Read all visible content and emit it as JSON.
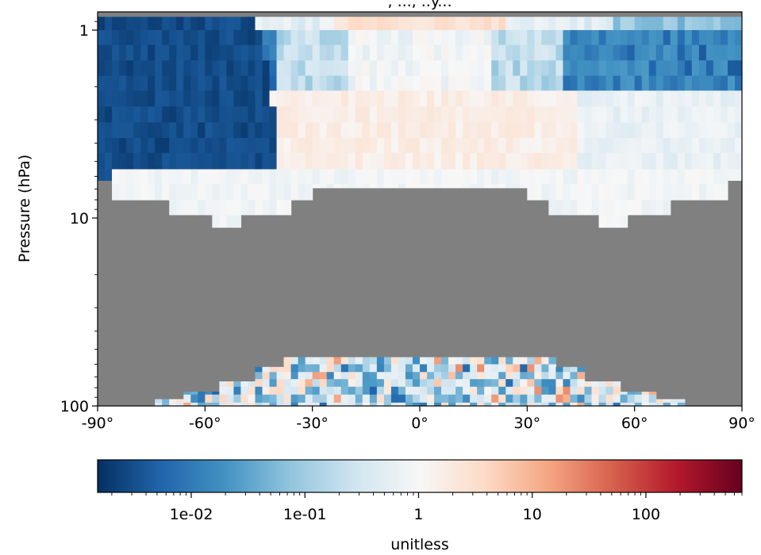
{
  "chart_data": {
    "type": "heatmap",
    "title_partial": ", ..., ..y...",
    "ylabel": "Pressure (hPa)",
    "x_ticks": [
      {
        "value": -90,
        "label": "-90°"
      },
      {
        "value": -60,
        "label": "-60°"
      },
      {
        "value": -30,
        "label": "-30°"
      },
      {
        "value": 0,
        "label": "0°"
      },
      {
        "value": 30,
        "label": "30°"
      },
      {
        "value": 60,
        "label": "60°"
      },
      {
        "value": 90,
        "label": "90°"
      }
    ],
    "xlim": [
      -90,
      90
    ],
    "y_scale": "log",
    "y_inverted": true,
    "y_ticks": [
      {
        "value": 1,
        "label": "1"
      },
      {
        "value": 10,
        "label": "10"
      },
      {
        "value": 100,
        "label": "100"
      }
    ],
    "ylim": [
      100,
      0.8
    ],
    "missing_color": "#808080",
    "colormap": "RdBu_r",
    "colorbar": {
      "scale": "log",
      "range": [
        0.0015,
        700
      ],
      "ticks": [
        {
          "value": 0.01,
          "label": "1e-02"
        },
        {
          "value": 0.1,
          "label": "1e-01"
        },
        {
          "value": 1,
          "label": "1"
        },
        {
          "value": 10,
          "label": "10"
        },
        {
          "value": 100,
          "label": "100"
        }
      ],
      "label": "unitless"
    }
  }
}
